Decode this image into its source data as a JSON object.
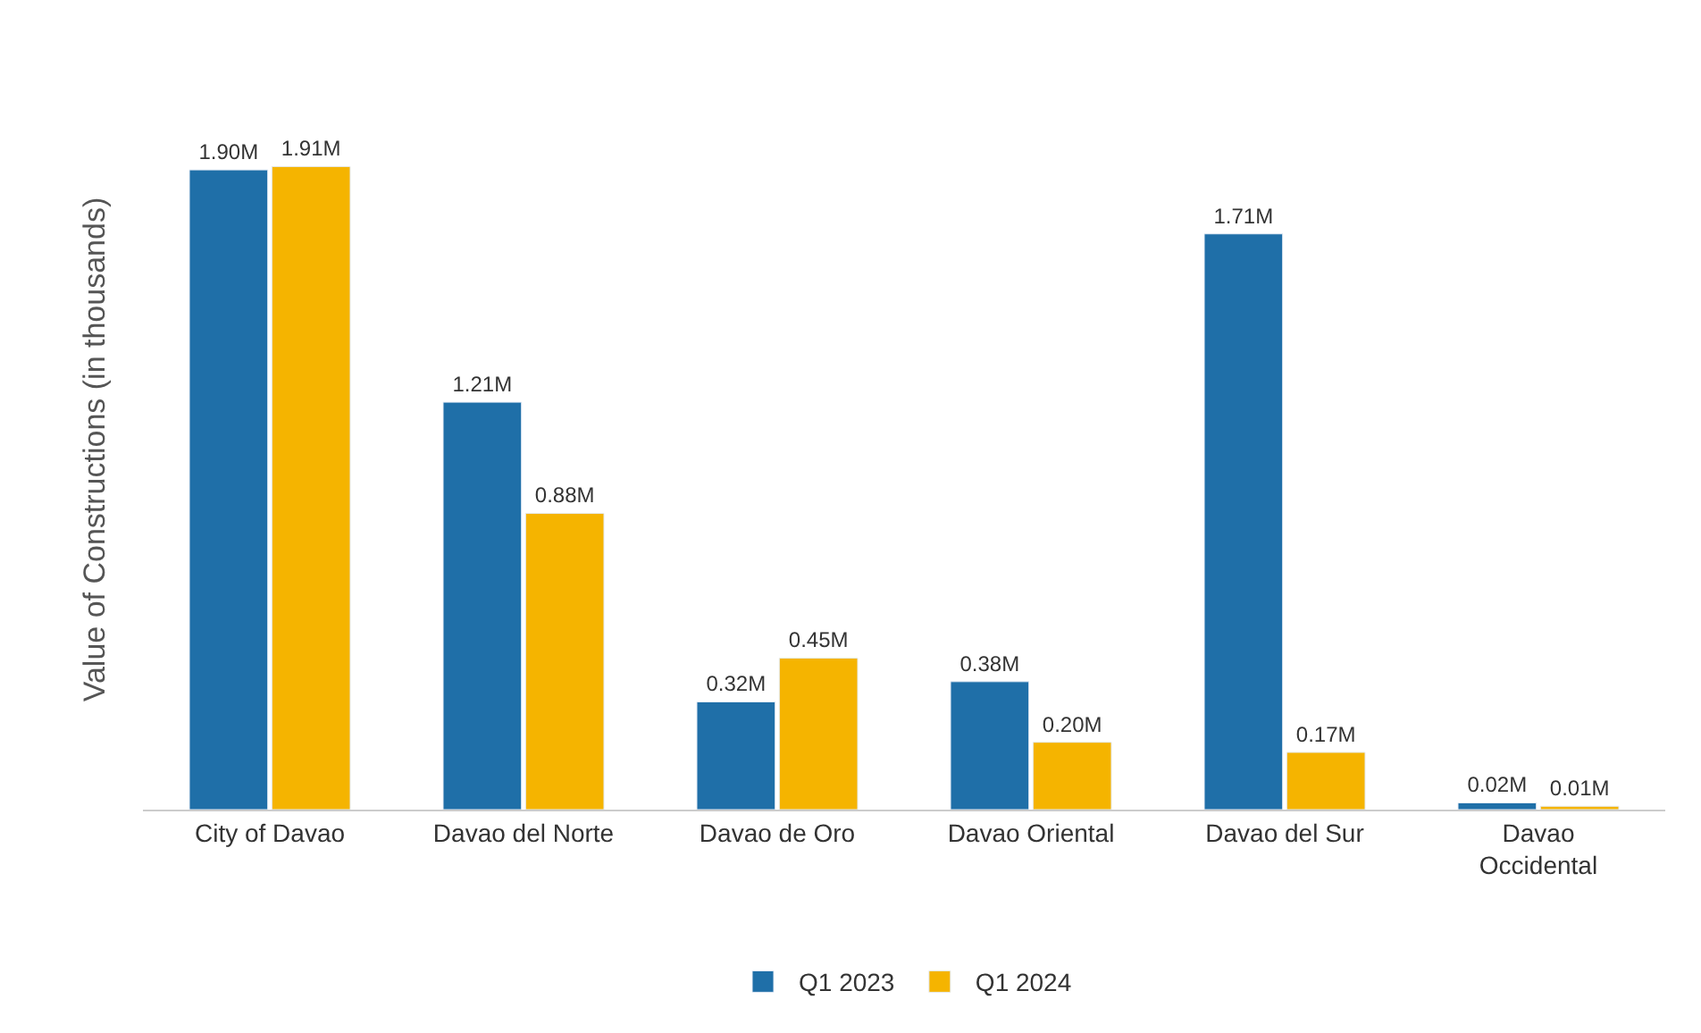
{
  "chart_data": {
    "type": "bar",
    "ylabel": "Value of Constructions (in thousands)",
    "categories": [
      "City of Davao",
      "Davao del Norte",
      "Davao de Oro",
      "Davao Oriental",
      "Davao del Sur",
      "Davao Occidental"
    ],
    "series": [
      {
        "name": "Q1 2023",
        "color": "#1f6fa8",
        "values": [
          1.9,
          1.21,
          0.32,
          0.38,
          1.71,
          0.02
        ],
        "value_labels": [
          "1.90M",
          "1.21M",
          "0.32M",
          "0.38M",
          "1.71M",
          "0.02M"
        ]
      },
      {
        "name": "Q1 2024",
        "color": "#f5b400",
        "values": [
          1.91,
          0.88,
          0.45,
          0.2,
          0.17,
          0.01
        ],
        "value_labels": [
          "1.91M",
          "0.88M",
          "0.45M",
          "0.20M",
          "0.17M",
          "0.01M"
        ]
      }
    ],
    "legend": "bottom"
  }
}
